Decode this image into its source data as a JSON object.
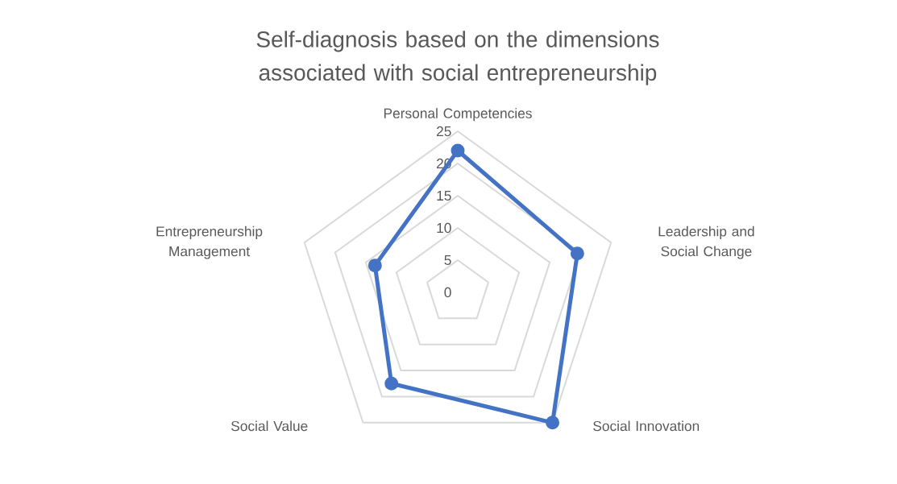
{
  "chart_data": {
    "type": "radar",
    "title": "Self-diagnosis based on the dimensions associated with social entrepreneurship",
    "categories": [
      "Personal Competencies",
      "Leadership and Social Change",
      "Social Innovation",
      "Social Value",
      "Entrepreneurship Management"
    ],
    "series": [
      {
        "color": "#4472c4",
        "values": [
          22,
          19.5,
          25,
          17.5,
          13.5
        ]
      }
    ],
    "ylim": [
      0,
      25
    ],
    "yticks": [
      0,
      5,
      10,
      15,
      20,
      25
    ],
    "grid": true,
    "marker": "circle",
    "line_style": "solid"
  }
}
